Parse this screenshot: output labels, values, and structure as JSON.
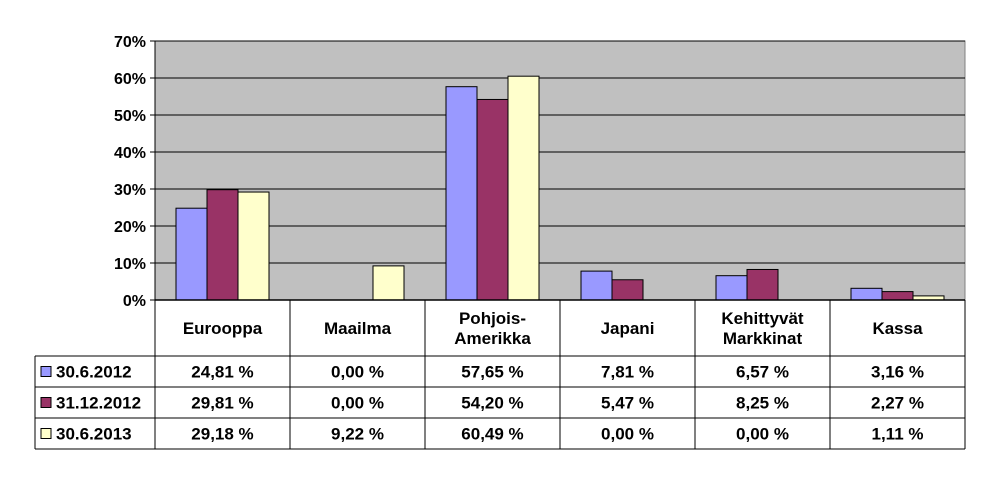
{
  "chart_data": {
    "type": "bar",
    "categories": [
      "Eurooppa",
      "Maailma",
      "Pohjois-Amerikka",
      "Japani",
      "Kehittyvät Markkinat",
      "Kassa"
    ],
    "category_lines": [
      [
        "Eurooppa"
      ],
      [
        "Maailma"
      ],
      [
        "Pohjois-",
        "Amerikka"
      ],
      [
        "Japani"
      ],
      [
        "Kehittyvät",
        "Markkinat"
      ],
      [
        "Kassa"
      ]
    ],
    "series": [
      {
        "name": "30.6.2012",
        "color": "#9999ff",
        "values": [
          24.81,
          0.0,
          57.65,
          7.81,
          6.57,
          3.16
        ],
        "labels": [
          "24,81 %",
          "0,00 %",
          "57,65 %",
          "7,81 %",
          "6,57 %",
          "3,16 %"
        ]
      },
      {
        "name": "31.12.2012",
        "color": "#993366",
        "values": [
          29.81,
          0.0,
          54.2,
          5.47,
          8.25,
          2.27
        ],
        "labels": [
          "29,81 %",
          "0,00 %",
          "54,20 %",
          "5,47 %",
          "8,25 %",
          "2,27 %"
        ]
      },
      {
        "name": "30.6.2013",
        "color": "#ffffcc",
        "values": [
          29.18,
          9.22,
          60.49,
          0.0,
          0.0,
          1.11
        ],
        "labels": [
          "29,18 %",
          "9,22 %",
          "60,49 %",
          "0,00 %",
          "0,00 %",
          "1,11 %"
        ]
      }
    ],
    "yticks": [
      "0%",
      "10%",
      "20%",
      "30%",
      "40%",
      "50%",
      "60%",
      "70%"
    ],
    "ylim": [
      0,
      70
    ],
    "plot_background": "#c0c0c0",
    "grid": true,
    "legend": "data-table",
    "title": "",
    "xlabel": "",
    "ylabel": ""
  }
}
